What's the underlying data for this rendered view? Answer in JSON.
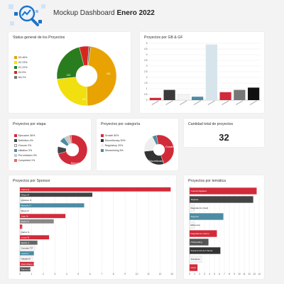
{
  "header": {
    "title_prefix": "Mockup Dashboard ",
    "title_bold": "Enero 2022",
    "logo_icon": "magnifier-chart-logo-icon",
    "colors": {
      "background": "#f3f3f3",
      "logo_blue": "#1a73c8"
    }
  },
  "status_card": {
    "title": "Status general de los Proyectos",
    "legend": [
      {
        "label": "G0 46%",
        "color": "#e8a302"
      },
      {
        "label": "G2 23%",
        "color": "#f1df10"
      },
      {
        "label": "G1 22%",
        "color": "#2a7d1e"
      },
      {
        "label": "G4 5%",
        "color": "#d6271f"
      },
      {
        "label": "NA 1%",
        "color": "#777777"
      }
    ],
    "slice_labels": [
      "G2",
      "G0",
      "G1"
    ]
  },
  "gb_card": {
    "title": "Proyectos por GB & GF"
  },
  "etapa_card": {
    "title": "Proyectos por etapa",
    "legend": [
      {
        "label": "Ejecucion 36%",
        "color": "#d12b3a"
      },
      {
        "label": "Definition 4%",
        "color": "#444444"
      },
      {
        "label": "Closure 3%",
        "color": "#ffffff"
      },
      {
        "label": "Initiation 3%",
        "color": "#4d8ca3"
      },
      {
        "label": "Pre-initiation 3%",
        "color": "#c9c9c9"
      },
      {
        "label": "Completed 1%",
        "color": "#e06a6a"
      }
    ],
    "slice_label": "Ejecución"
  },
  "categoria_card": {
    "title": "Proyectos por categoría",
    "legend": [
      {
        "label": "Growth 50%",
        "color": "#d12b3a"
      },
      {
        "label": "Discretionary 30%",
        "color": "#333333"
      },
      {
        "label": "Regulatory 20%",
        "color": "#eeeeee"
      },
      {
        "label": "Streamlining 5%",
        "color": "#4d8ca3"
      }
    ],
    "slice_labels": [
      "Growth",
      "Discretionary"
    ]
  },
  "kpi_card": {
    "title": "Cantidad total de proyectos",
    "value": "32"
  },
  "sponsor_card": {
    "title": "Proyectos por Sponsor"
  },
  "tematica_card": {
    "title": "Proyectos por temática"
  },
  "chart_data": [
    {
      "type": "pie",
      "title": "Status general de los Proyectos",
      "categories": [
        "G0",
        "G2",
        "G1",
        "G4",
        "NA"
      ],
      "values": [
        46,
        23,
        22,
        5,
        1
      ],
      "units": "%",
      "colors": [
        "#e8a302",
        "#f1df10",
        "#2a7d1e",
        "#d6271f",
        "#777777"
      ],
      "donut": true,
      "legend": "left"
    },
    {
      "type": "bar",
      "title": "Proyectos por GB & GF",
      "ylim": [
        0,
        5
      ],
      "yticks": [
        0,
        0.5,
        1,
        1.5,
        2,
        2.5,
        3,
        3.5,
        4,
        4.5,
        5
      ],
      "values": [
        0.2,
        0.9,
        0.5,
        0.3,
        4.9,
        0.7,
        0.9,
        1.1
      ],
      "colors": [
        "#d12b3a",
        "#3a3a3a",
        "#f4f4f4",
        "#4d8ca3",
        "#d8e4ec",
        "#d12b3a",
        "#777777",
        "#111111"
      ],
      "grid": true
    },
    {
      "type": "pie",
      "title": "Proyectos por etapa",
      "categories": [
        "Ejecucion",
        "Definition",
        "Closure",
        "Initiation",
        "Pre-initiation",
        "Completed"
      ],
      "values": [
        36,
        4,
        3,
        3,
        3,
        1
      ],
      "units": "%",
      "colors": [
        "#d12b3a",
        "#444444",
        "#ffffff",
        "#4d8ca3",
        "#c9c9c9",
        "#e06a6a"
      ],
      "donut": true,
      "legend": "left"
    },
    {
      "type": "pie",
      "title": "Proyectos por categoría",
      "categories": [
        "Growth",
        "Discretionary",
        "Regulatory",
        "Streamlining"
      ],
      "values": [
        50,
        30,
        20,
        5
      ],
      "units": "%",
      "colors": [
        "#d12b3a",
        "#333333",
        "#eeeeee",
        "#4d8ca3"
      ],
      "donut": true,
      "legend": "left"
    },
    {
      "type": "bar",
      "orientation": "horizontal",
      "title": "Proyectos por Sponsor",
      "xlim": [
        0,
        13
      ],
      "xticks": [
        0,
        1,
        2,
        3,
        4,
        5,
        6,
        7,
        8,
        9,
        10,
        11,
        12,
        13
      ],
      "categories": [
        "Carlos E",
        "Diego M",
        "Gustavo O",
        "Marcelo H",
        "Diego R",
        "Juan M",
        "Pedro S",
        "Lucas M",
        "Carlos S",
        "Lucas M",
        "Martin C",
        "Gonzalo T.P",
        "Laura C",
        "Natalia M",
        "Maximiliano R",
        "Ramiro M"
      ],
      "values": [
        12.9,
        6.2,
        0.3,
        5.5,
        0.2,
        3.9,
        2.9,
        0.2,
        0.2,
        2.5,
        1.5,
        1.3,
        1.2,
        1.1,
        1.2,
        0.9
      ],
      "colors": [
        "#d12b3a",
        "#444444",
        "#f4f4f4",
        "#4d8ca3",
        "#f4f4f4",
        "#d12b3a",
        "#888888",
        "#d12b3a",
        "#f4f4f4",
        "#d12b3a",
        "#666666",
        "#f4f4f4",
        "#4d8ca3",
        "#f4f4f4",
        "#d12b3a",
        "#555555"
      ],
      "grid": true
    },
    {
      "type": "bar",
      "orientation": "horizontal",
      "title": "Proyectos por temática",
      "xlim": [
        0,
        14
      ],
      "xticks": [
        0,
        1,
        2,
        3,
        4,
        5,
        6,
        7,
        8,
        9,
        10,
        11,
        12,
        13,
        14
      ],
      "categories": [
        "Cuenta Digitales",
        "Tarjetas",
        "Regulatorio (Gud)",
        "Seguros",
        "Eficiencia",
        "Regulatorio Interno",
        "Onboarding",
        "Experiencia del cliente",
        "Transfers",
        "Otros"
      ],
      "values": [
        13.5,
        12.8,
        1.0,
        6.8,
        1.0,
        5.5,
        3.8,
        6.2,
        2.5,
        1.6
      ],
      "colors": [
        "#d12b3a",
        "#444444",
        "#f4f4f4",
        "#4d8ca3",
        "#f4f4f4",
        "#d12b3a",
        "#555555",
        "#333333",
        "#f4f4f4",
        "#d12b3a"
      ],
      "grid": true
    }
  ]
}
